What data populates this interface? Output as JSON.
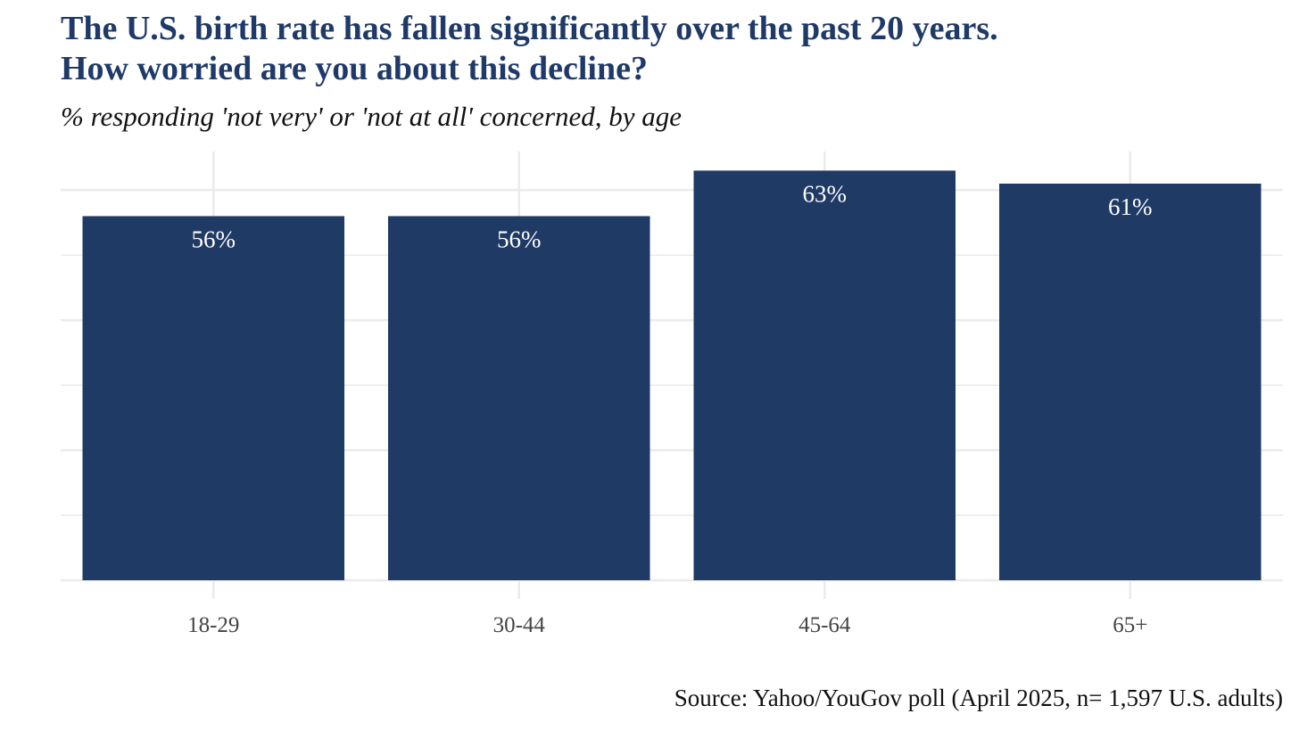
{
  "chart_data": {
    "type": "bar",
    "title_lines": [
      "The U.S. birth rate has fallen significantly over the past 20 years.",
      "How worried are you about this decline?"
    ],
    "subtitle": "% responding 'not very' or 'not at all' concerned, by age",
    "categories": [
      "18-29",
      "30-44",
      "45-64",
      "65+"
    ],
    "values": [
      56,
      56,
      63,
      61
    ],
    "data_labels": [
      "56%",
      "56%",
      "63%",
      "61%"
    ],
    "xlabel": "",
    "ylabel": "",
    "ylim": [
      0,
      65
    ],
    "grid": true,
    "y_tick_labels_shown": false,
    "bar_color": "#203a66",
    "grid_color": "#ebebeb",
    "label_color": "#ffffff",
    "source": "Source: Yahoo/YouGov poll (April 2025, n= 1,597 U.S. adults)"
  },
  "colors": {
    "title": "#1f3a68",
    "text": "#111111",
    "axis_text": "#444444"
  }
}
